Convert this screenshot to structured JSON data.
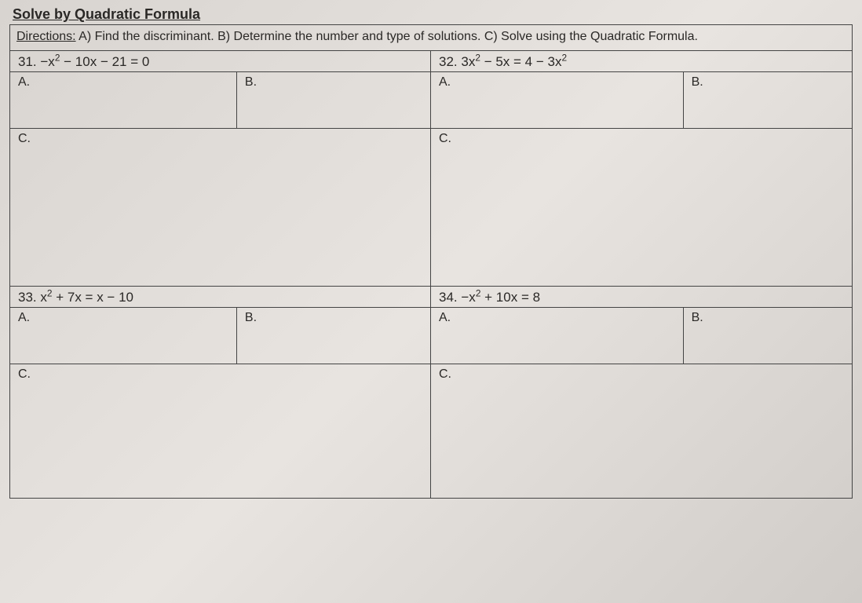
{
  "title": "Solve by Quadratic Formula",
  "directions": {
    "label": "Directions:",
    "text": " A) Find the discriminant. B) Determine the number and type of solutions. C) Solve using the Quadratic Formula."
  },
  "problems": [
    {
      "number": "31.",
      "equation_html": "−x<sup>2</sup> − 10x − 21 = 0",
      "labelA": "A.",
      "labelB": "B.",
      "labelC": "C."
    },
    {
      "number": "32.",
      "equation_html": "3x<sup>2</sup> − 5x = 4 − 3x<sup>2</sup>",
      "labelA": "A.",
      "labelB": "B.",
      "labelC": "C."
    },
    {
      "number": "33.",
      "equation_html": "x<sup>2</sup> + 7x = x − 10",
      "labelA": "A.",
      "labelB": "B.",
      "labelC": "C."
    },
    {
      "number": "34.",
      "equation_html": "−x<sup>2</sup> + 10x = 8",
      "labelA": "A.",
      "labelB": "B.",
      "labelC": "C."
    }
  ],
  "layout": {
    "row1_c_height_class": "tall",
    "row2_c_height_class": "short"
  },
  "style": {
    "font_family": "Arial",
    "title_fontsize": 18,
    "body_fontsize": 16,
    "border_color": "#444",
    "text_color": "#2a2826",
    "background_gradient": [
      "#d8d4d0",
      "#e8e4e0",
      "#d0ccc8"
    ]
  }
}
